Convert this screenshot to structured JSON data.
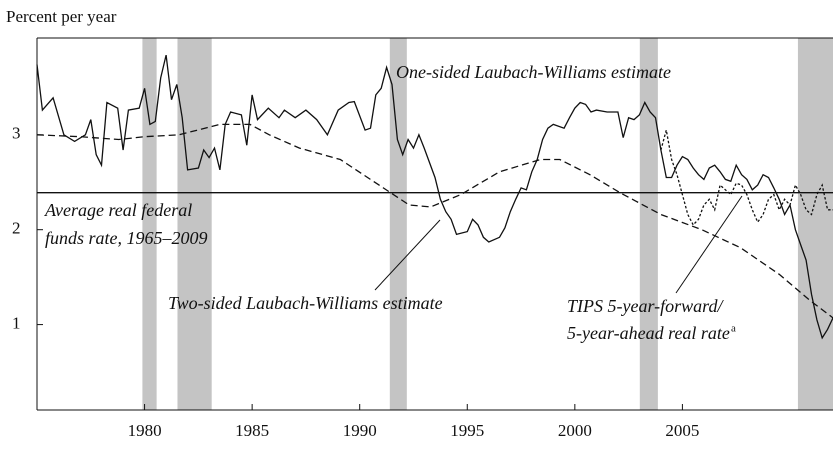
{
  "chart_data": {
    "type": "line",
    "axis_label": "Percent per year",
    "xlim": [
      1975,
      2012
    ],
    "ylim": [
      0.1,
      4.02
    ],
    "xticks": [
      1980,
      1985,
      1990,
      1995,
      2000,
      2005
    ],
    "yticks": [
      1,
      2,
      3
    ],
    "reference_line": 2.39,
    "recessions": [
      [
        1979.9,
        1980.56
      ],
      [
        1981.53,
        1983.12
      ],
      [
        1991.4,
        1992.19
      ],
      [
        2003.02,
        2003.86
      ],
      [
        2010.37,
        2012
      ]
    ],
    "recession_color": "#c4c4c4",
    "annotations": [
      "One-sided Laubach-Williams estimate",
      "Average real federal",
      "funds rate, 1965–2009",
      "Two-sided Laubach-Williams estimate",
      "TIPS 5-year-forward/",
      "5-year-ahead real rate",
      "a"
    ],
    "series": [
      {
        "color": "#111111",
        "style": "solid",
        "x": [
          1975.0,
          1975.25,
          1975.75,
          1976.25,
          1976.75,
          1977.25,
          1977.5,
          1977.75,
          1978.0,
          1978.25,
          1978.75,
          1979.0,
          1979.25,
          1979.75,
          1980.0,
          1980.25,
          1980.5,
          1980.75,
          1981.0,
          1981.25,
          1981.5,
          1981.75,
          1982.0,
          1982.5,
          1982.75,
          1983.0,
          1983.25,
          1983.5,
          1983.75,
          1984.0,
          1984.5,
          1984.75,
          1985.0,
          1985.25,
          1985.75,
          1986.25,
          1986.5,
          1987.0,
          1987.5,
          1988.0,
          1988.5,
          1989.0,
          1989.5,
          1989.75,
          1990.25,
          1990.5,
          1990.75,
          1991.0,
          1991.25,
          1991.5,
          1991.75,
          1992.0,
          1992.25,
          1992.5,
          1992.75,
          1993.0,
          1993.5,
          1993.75,
          1994.0,
          1994.25,
          1994.5,
          1995.0,
          1995.25,
          1995.5,
          1995.75,
          1996.0,
          1996.5,
          1996.75,
          1997.0,
          1997.25,
          1997.5,
          1997.75,
          1998.0,
          1998.25,
          1998.5,
          1998.75,
          1999.0,
          1999.5,
          1999.75,
          2000.0,
          2000.25,
          2000.5,
          2000.75,
          2001.0,
          2001.5,
          2002.0,
          2002.25,
          2002.5,
          2002.75,
          2003.0,
          2003.25,
          2003.5,
          2003.75,
          2004.0,
          2004.25,
          2004.5,
          2004.75,
          2005.0,
          2005.25,
          2005.5,
          2005.75,
          2006.0,
          2006.25,
          2006.5,
          2006.75,
          2007.0,
          2007.25,
          2007.5,
          2007.75,
          2008.0,
          2008.25,
          2008.5,
          2008.75,
          2009.0,
          2009.25,
          2009.5,
          2009.75,
          2010.0,
          2010.25,
          2010.5,
          2010.75,
          2011.0,
          2011.25,
          2011.5,
          2011.75,
          2012.0
        ],
        "values": [
          3.74,
          3.26,
          3.39,
          3.0,
          2.93,
          3.0,
          3.16,
          2.79,
          2.68,
          3.34,
          3.28,
          2.84,
          3.26,
          3.28,
          3.49,
          3.11,
          3.14,
          3.6,
          3.84,
          3.37,
          3.53,
          3.18,
          2.63,
          2.65,
          2.84,
          2.76,
          2.86,
          2.63,
          3.11,
          3.24,
          3.21,
          2.89,
          3.42,
          3.16,
          3.28,
          3.18,
          3.26,
          3.18,
          3.26,
          3.16,
          3.0,
          3.26,
          3.34,
          3.35,
          3.05,
          3.07,
          3.42,
          3.49,
          3.71,
          3.53,
          2.95,
          2.79,
          2.95,
          2.86,
          3.0,
          2.86,
          2.55,
          2.32,
          2.19,
          2.11,
          1.95,
          1.98,
          2.11,
          2.05,
          1.92,
          1.87,
          1.92,
          2.02,
          2.19,
          2.32,
          2.44,
          2.42,
          2.61,
          2.74,
          2.95,
          3.07,
          3.11,
          3.07,
          3.18,
          3.28,
          3.34,
          3.32,
          3.24,
          3.26,
          3.24,
          3.24,
          2.97,
          3.18,
          3.16,
          3.21,
          3.34,
          3.24,
          3.18,
          2.84,
          2.55,
          2.55,
          2.68,
          2.77,
          2.74,
          2.65,
          2.58,
          2.53,
          2.65,
          2.68,
          2.61,
          2.53,
          2.51,
          2.68,
          2.58,
          2.53,
          2.42,
          2.47,
          2.58,
          2.55,
          2.44,
          2.32,
          2.16,
          2.26,
          2.0,
          1.84,
          1.68,
          1.32,
          1.05,
          0.86,
          0.95,
          1.07
        ]
      },
      {
        "color": "#111111",
        "style": "dashed",
        "x": [
          1975.0,
          1977.0,
          1978.8,
          1980.0,
          1981.6,
          1983.5,
          1984.9,
          1985.8,
          1987.2,
          1989.1,
          1990.9,
          1992.3,
          1993.3,
          1994.7,
          1996.5,
          1998.4,
          1999.3,
          2000.7,
          2002.1,
          2004.0,
          2005.9,
          2007.7,
          2009.5,
          2010.9,
          2012.0
        ],
        "values": [
          3.0,
          2.98,
          2.95,
          2.98,
          3.0,
          3.11,
          3.11,
          3.0,
          2.86,
          2.74,
          2.47,
          2.26,
          2.24,
          2.37,
          2.61,
          2.74,
          2.74,
          2.58,
          2.39,
          2.16,
          2.0,
          1.81,
          1.53,
          1.26,
          1.07
        ]
      },
      {
        "color": "#111111",
        "style": "dotted",
        "x": [
          2004.0,
          2004.25,
          2004.5,
          2004.75,
          2005.0,
          2005.25,
          2005.5,
          2005.75,
          2006.0,
          2006.25,
          2006.5,
          2006.75,
          2007.0,
          2007.25,
          2007.5,
          2007.75,
          2008.0,
          2008.25,
          2008.5,
          2008.75,
          2009.0,
          2009.25,
          2009.5,
          2009.75,
          2010.0,
          2010.25,
          2010.5,
          2010.75,
          2011.0,
          2011.25,
          2011.5,
          2011.75,
          2012.0
        ],
        "values": [
          2.84,
          3.05,
          2.74,
          2.58,
          2.37,
          2.16,
          2.05,
          2.11,
          2.26,
          2.32,
          2.21,
          2.47,
          2.42,
          2.37,
          2.49,
          2.47,
          2.37,
          2.21,
          2.08,
          2.16,
          2.32,
          2.37,
          2.21,
          2.32,
          2.26,
          2.47,
          2.37,
          2.21,
          2.16,
          2.37,
          2.47,
          2.21,
          2.21
        ]
      }
    ]
  }
}
